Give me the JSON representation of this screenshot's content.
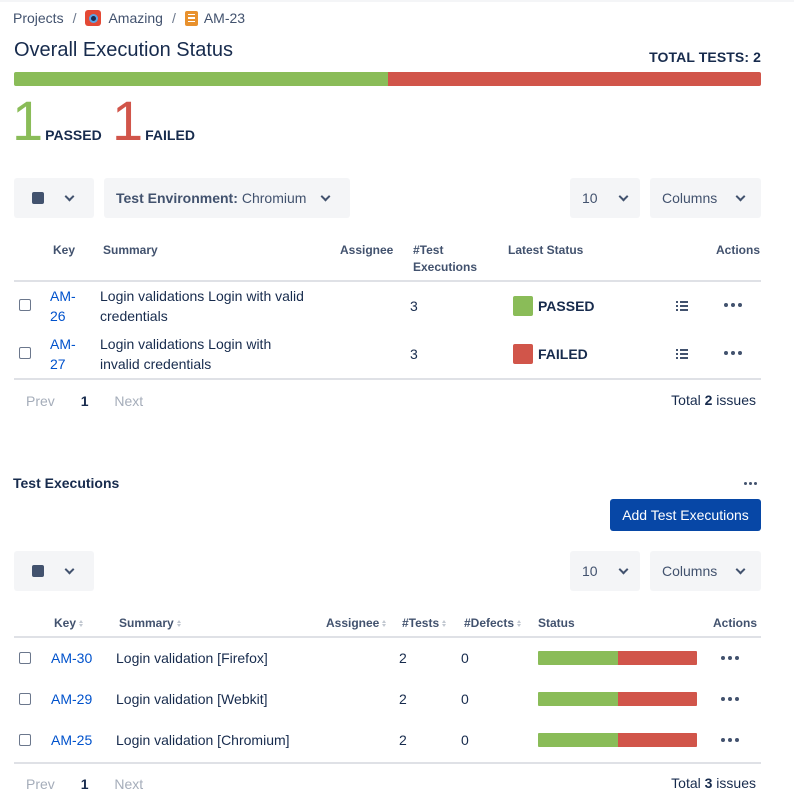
{
  "breadcrumb": {
    "projects": "Projects",
    "project": "Amazing",
    "issue": "AM-23"
  },
  "overall": {
    "title": "Overall Execution Status",
    "total_tests": "TOTAL TESTS: 2",
    "passed_count": "1",
    "passed_label": "PASSED",
    "failed_count": "1",
    "failed_label": "FAILED",
    "passed_fraction": 0.5,
    "failed_fraction": 0.5
  },
  "tests_toolbar": {
    "filter_key": "Test Environment:",
    "filter_value": "Chromium",
    "page_size": "10",
    "columns": "Columns"
  },
  "tests_table": {
    "headers": [
      "Key",
      "Summary",
      "Assignee",
      "#Test Executions",
      "Latest Status",
      "Actions"
    ],
    "header_exec_line1": "#Test",
    "header_exec_line2": "Executions",
    "rows": [
      {
        "key_line1": "AM-",
        "key_line2": "26",
        "summary_line1": "Login validations Login with valid",
        "summary_line2": "credentials",
        "assignee": "",
        "executions": "3",
        "status": "PASSED",
        "status_color": "#8abc58"
      },
      {
        "key_line1": "AM-",
        "key_line2": "27",
        "summary_line1": "Login validations Login with",
        "summary_line2": "invalid credentials",
        "assignee": "",
        "executions": "3",
        "status": "FAILED",
        "status_color": "#d1554a"
      }
    ],
    "pager": {
      "prev": "Prev",
      "page": "1",
      "next": "Next"
    },
    "total_prefix": "Total ",
    "total_count": "2",
    "total_suffix": " issues"
  },
  "executions": {
    "title": "Test Executions",
    "add_button": "Add Test Executions",
    "page_size": "10",
    "columns": "Columns",
    "headers": [
      "Key",
      "Summary",
      "Assignee",
      "#Tests",
      "#Defects",
      "Status",
      "Actions"
    ],
    "rows": [
      {
        "key": "AM-30",
        "summary": "Login validation [Firefox]",
        "assignee": "",
        "tests": "2",
        "defects": "0",
        "pass_fraction": 0.5
      },
      {
        "key": "AM-29",
        "summary": "Login validation [Webkit]",
        "assignee": "",
        "tests": "2",
        "defects": "0",
        "pass_fraction": 0.5
      },
      {
        "key": "AM-25",
        "summary": "Login validation [Chromium]",
        "assignee": "",
        "tests": "2",
        "defects": "0",
        "pass_fraction": 0.5
      }
    ],
    "pager": {
      "prev": "Prev",
      "page": "1",
      "next": "Next"
    },
    "total_prefix": "Total ",
    "total_count": "3",
    "total_suffix": " issues"
  },
  "colors": {
    "pass": "#8abc58",
    "fail": "#d1554a",
    "primary": "#0747a6",
    "link": "#0052cc"
  }
}
